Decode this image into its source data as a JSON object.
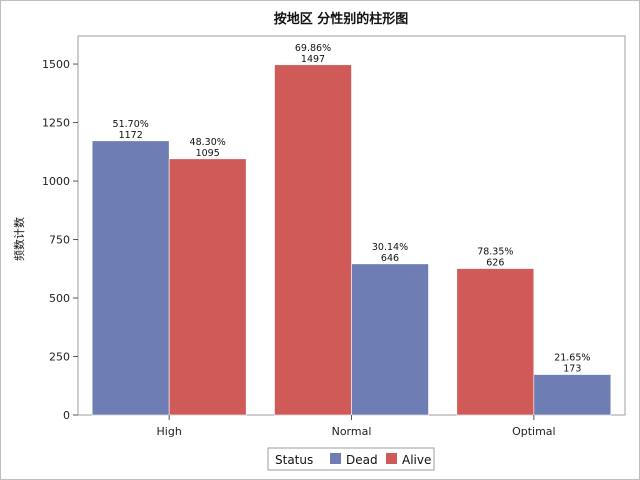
{
  "chart_data": {
    "type": "bar",
    "title": "按地区 分性别的柱形图",
    "xlabel": "",
    "ylabel": "频数计数",
    "categories": [
      "High",
      "Normal",
      "Optimal"
    ],
    "ylim": [
      0,
      1620
    ],
    "yticks": [
      0,
      250,
      500,
      750,
      1000,
      1250,
      1500
    ],
    "series": [
      {
        "name": "Dead",
        "color": "#6f7db5",
        "values": [
          1172,
          646,
          173
        ],
        "labels": [
          "51.70%",
          "30.14%",
          "21.65%"
        ]
      },
      {
        "name": "Alive",
        "color": "#d05a58",
        "values": [
          1095,
          1497,
          626
        ],
        "labels": [
          "48.30%",
          "69.86%",
          "78.35%"
        ]
      }
    ],
    "bar_order": [
      [
        "Dead",
        "Alive"
      ],
      [
        "Alive",
        "Dead"
      ],
      [
        "Alive",
        "Dead"
      ]
    ],
    "legend": {
      "title": "Status",
      "placement": "bottom",
      "entries": [
        "Dead",
        "Alive"
      ]
    },
    "grid": false
  }
}
